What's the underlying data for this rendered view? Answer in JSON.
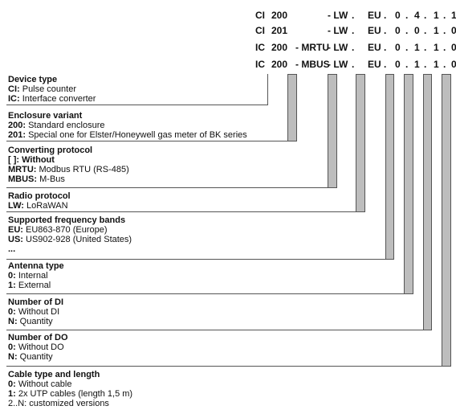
{
  "code_rows": [
    [
      "CI",
      "200",
      "",
      "- LW",
      ".",
      "EU",
      ".",
      "0",
      ".",
      "4",
      ".",
      "1",
      ".",
      "1"
    ],
    [
      "CI",
      "201",
      "",
      "- LW",
      ".",
      "EU",
      ".",
      "0",
      ".",
      "0",
      ".",
      "1",
      ".",
      "0"
    ],
    [
      "IC",
      "200",
      "- MRTU",
      "- LW",
      ".",
      "EU",
      ".",
      "0",
      ".",
      "1",
      ".",
      "1",
      ".",
      "0"
    ],
    [
      "IC",
      "200",
      "- MBUS",
      "- LW",
      ".",
      "EU",
      ".",
      "0",
      ".",
      "1",
      ".",
      "1",
      ".",
      "0"
    ]
  ],
  "sections": [
    {
      "title": "Device type",
      "lines": [
        {
          "k": "CI:",
          "v": " Pulse counter"
        },
        {
          "k": "IC:",
          "v": " Interface converter"
        }
      ]
    },
    {
      "title": "Enclosure variant",
      "lines": [
        {
          "k": "200:",
          "v": " Standard enclosure"
        },
        {
          "k": "201:",
          "v": " Special one for Elster/Honeywell gas meter of BK series"
        }
      ]
    },
    {
      "title": "Converting protocol",
      "lines": [
        {
          "k": "[ ]: Without",
          "v": ""
        },
        {
          "k": "MRTU:",
          "v": " Modbus RTU (RS-485)"
        },
        {
          "k": "MBUS:",
          "v": " M-Bus"
        }
      ]
    },
    {
      "title": "Radio protocol",
      "lines": [
        {
          "k": "LW:",
          "v": " LoRaWAN"
        }
      ]
    },
    {
      "title": "Supported frequency bands",
      "lines": [
        {
          "k": "EU:",
          "v": " EU863-870 (Europe)"
        },
        {
          "k": "US:",
          "v": " US902-928 (United States)"
        },
        {
          "k": "...",
          "v": ""
        }
      ]
    },
    {
      "title": "Antenna type",
      "lines": [
        {
          "k": "0:",
          "v": " Internal"
        },
        {
          "k": "1:",
          "v": " External"
        }
      ]
    },
    {
      "title": "Number of DI",
      "lines": [
        {
          "k": "0:",
          "v": " Without DI"
        },
        {
          "k": "N:",
          "v": " Quantity"
        }
      ]
    },
    {
      "title": "Number of DO",
      "lines": [
        {
          "k": "0:",
          "v": " Without DO"
        },
        {
          "k": "N:",
          "v": " Quantity"
        }
      ]
    },
    {
      "title": "Cable type and length",
      "lines": [
        {
          "k": "0:",
          "v": " Without cable"
        },
        {
          "k": "1:",
          "v": " 2x UTP cables (length 1,5 m)"
        },
        {
          "k": "",
          "v": "2..N: customized versions"
        }
      ]
    }
  ]
}
